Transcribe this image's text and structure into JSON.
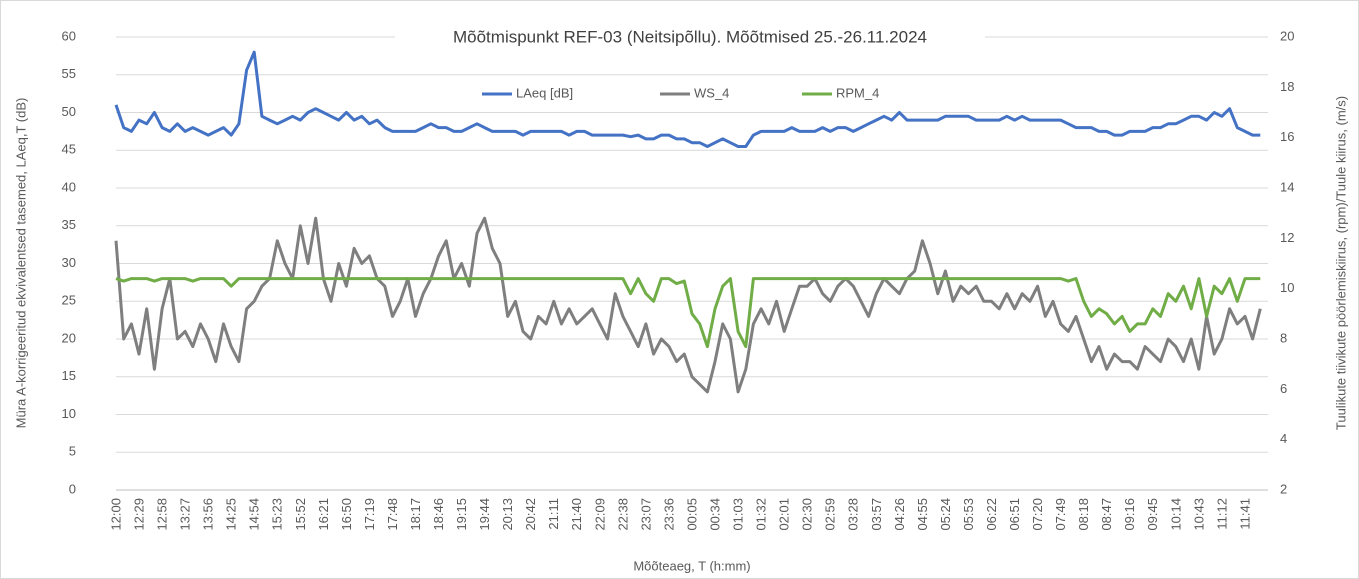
{
  "chart_data": {
    "type": "line",
    "title": "Mõõtmispunkt REF-03 (Neitsipõllu). Mõõtmised 25.-26.11.2024",
    "x_label": "Mõõteaeg, T (h:mm)",
    "y_label": "Müra A-korrigeeritud ekvivalentsed tasemed, LAeq,T (dB)",
    "y2_label": "Tuulikute tiivikute pöörlemiskiirus, (rpm)/Tuule kiirus, (m/s)",
    "ylim": [
      0,
      60
    ],
    "yticks": [
      0,
      5,
      10,
      15,
      20,
      25,
      30,
      35,
      40,
      45,
      50,
      55,
      60
    ],
    "y2lim": [
      2,
      20
    ],
    "y2ticks": [
      2,
      4,
      6,
      8,
      10,
      12,
      14,
      16,
      18,
      20
    ],
    "grid": true,
    "legend": "top",
    "categories": [
      "12:00",
      null,
      null,
      "12:29",
      null,
      null,
      "12:58",
      null,
      null,
      "13:27",
      null,
      null,
      "13:56",
      null,
      null,
      "14:25",
      null,
      null,
      "14:54",
      null,
      null,
      "15:23",
      null,
      null,
      "15:52",
      null,
      null,
      "16:21",
      null,
      null,
      "16:50",
      null,
      null,
      "17:19",
      null,
      null,
      "17:48",
      null,
      null,
      "18:17",
      null,
      null,
      "18:46",
      null,
      null,
      "19:15",
      null,
      null,
      "19:44",
      null,
      null,
      "20:13",
      null,
      null,
      "20:42",
      null,
      null,
      "21:11",
      null,
      null,
      "21:40",
      null,
      null,
      "22:09",
      null,
      null,
      "22:38",
      null,
      null,
      "23:07",
      null,
      null,
      "23:36",
      null,
      null,
      "00:05",
      null,
      null,
      "00:34",
      null,
      null,
      "01:03",
      null,
      null,
      "01:32",
      null,
      null,
      "02:01",
      null,
      null,
      "02:30",
      null,
      null,
      "02:59",
      null,
      null,
      "03:28",
      null,
      null,
      "03:57",
      null,
      null,
      "04:26",
      null,
      null,
      "04:55",
      null,
      null,
      "05:24",
      null,
      null,
      "05:53",
      null,
      null,
      "06:22",
      null,
      null,
      "06:51",
      null,
      null,
      "07:20",
      null,
      null,
      "07:49",
      null,
      null,
      "08:18",
      null,
      null,
      "08:47",
      null,
      null,
      "09:16",
      null,
      null,
      "09:45",
      null,
      null,
      "10:14",
      null,
      null,
      "10:43",
      null,
      null,
      "11:12",
      null,
      null,
      "11:41",
      null,
      null
    ],
    "series": [
      {
        "name": "LAeq [dB]",
        "color": "#4472c4",
        "values": [
          51,
          48,
          47.5,
          49,
          48.5,
          50,
          48,
          47.5,
          48.5,
          47.5,
          48,
          47.5,
          47,
          47.5,
          48,
          47,
          48.5,
          55.6,
          58,
          49.5,
          49,
          48.5,
          49,
          49.5,
          49,
          50,
          50.5,
          50,
          49.5,
          49,
          50,
          49,
          49.5,
          48.5,
          49,
          48,
          47.5,
          47.5,
          47.5,
          47.5,
          48,
          48.5,
          48,
          48,
          47.5,
          47.5,
          48,
          48.5,
          48,
          47.5,
          47.5,
          47.5,
          47.5,
          47,
          47.5,
          47.5,
          47.5,
          47.5,
          47.5,
          47,
          47.5,
          47.5,
          47,
          47,
          47,
          47,
          47,
          46.8,
          47,
          46.5,
          46.5,
          47,
          47,
          46.5,
          46.5,
          46,
          46,
          45.5,
          46,
          46.5,
          46,
          45.5,
          45.5,
          47,
          47.5,
          47.5,
          47.5,
          47.5,
          48,
          47.5,
          47.5,
          47.5,
          48,
          47.5,
          48,
          48,
          47.5,
          48,
          48.5,
          49,
          49.5,
          49,
          50,
          49,
          49,
          49,
          49,
          49,
          49.5,
          49.5,
          49.5,
          49.5,
          49,
          49,
          49,
          49,
          49.5,
          49,
          49.5,
          49,
          49,
          49,
          49,
          49,
          48.5,
          48,
          48,
          48,
          47.5,
          47.5,
          47,
          47,
          47.5,
          47.5,
          47.5,
          48,
          48,
          48.5,
          48.5,
          49,
          49.5,
          49.5,
          49,
          50,
          49.5,
          50.5,
          48,
          47.5,
          47,
          47
        ]
      },
      {
        "name": "WS_4",
        "color": "#7f7f7f",
        "axis": "y2",
        "values": [
          11.9,
          8,
          8.6,
          7.4,
          9.2,
          6.8,
          9.2,
          10.4,
          8,
          8.3,
          7.7,
          8.6,
          8,
          7.1,
          8.6,
          7.7,
          7.1,
          9.2,
          9.5,
          10.1,
          10.4,
          11.9,
          11,
          10.4,
          12.5,
          11,
          12.8,
          10.4,
          9.5,
          11,
          10.1,
          11.6,
          11,
          11.3,
          10.4,
          10.1,
          8.9,
          9.5,
          10.4,
          8.9,
          9.8,
          10.4,
          11.3,
          11.9,
          10.4,
          11,
          10.1,
          12.2,
          12.8,
          11.6,
          11,
          8.9,
          9.5,
          8.3,
          8,
          8.9,
          8.6,
          9.5,
          8.6,
          9.2,
          8.6,
          8.9,
          9.2,
          8.6,
          8,
          9.8,
          8.9,
          8.3,
          7.7,
          8.6,
          7.4,
          8,
          7.7,
          7.1,
          7.4,
          6.5,
          6.2,
          5.9,
          7.1,
          8.6,
          8,
          5.9,
          6.8,
          8.6,
          9.2,
          8.6,
          9.5,
          8.3,
          9.2,
          10.1,
          10.1,
          10.4,
          9.8,
          9.5,
          10.1,
          10.4,
          10.1,
          9.5,
          8.9,
          9.8,
          10.4,
          10.1,
          9.8,
          10.4,
          10.7,
          11.9,
          11,
          9.8,
          10.7,
          9.5,
          10.1,
          9.8,
          10.1,
          9.5,
          9.5,
          9.2,
          9.8,
          9.2,
          9.8,
          9.5,
          10.1,
          8.9,
          9.5,
          8.6,
          8.3,
          8.9,
          8,
          7.1,
          7.7,
          6.8,
          7.4,
          7.1,
          7.1,
          6.8,
          7.7,
          7.4,
          7.1,
          8,
          7.7,
          7.1,
          8,
          6.8,
          8.9,
          7.4,
          8,
          9.2,
          8.6,
          8.9,
          8,
          9.2
        ]
      },
      {
        "name": "RPM_4",
        "color": "#70ad47",
        "axis": "y2",
        "values": [
          10.4,
          10.3,
          10.4,
          10.4,
          10.4,
          10.3,
          10.4,
          10.4,
          10.4,
          10.4,
          10.3,
          10.4,
          10.4,
          10.4,
          10.4,
          10.1,
          10.4,
          10.4,
          10.4,
          10.4,
          10.4,
          10.4,
          10.4,
          10.4,
          10.4,
          10.4,
          10.4,
          10.4,
          10.4,
          10.4,
          10.4,
          10.4,
          10.4,
          10.4,
          10.4,
          10.4,
          10.4,
          10.4,
          10.4,
          10.4,
          10.4,
          10.4,
          10.4,
          10.4,
          10.4,
          10.4,
          10.4,
          10.4,
          10.4,
          10.4,
          10.4,
          10.4,
          10.4,
          10.4,
          10.4,
          10.4,
          10.4,
          10.4,
          10.4,
          10.4,
          10.4,
          10.4,
          10.4,
          10.4,
          10.4,
          10.4,
          10.4,
          9.8,
          10.4,
          9.8,
          9.5,
          10.4,
          10.4,
          10.2,
          10.3,
          9,
          8.6,
          7.7,
          9.2,
          10.1,
          10.4,
          8.3,
          7.7,
          10.4,
          10.4,
          10.4,
          10.4,
          10.4,
          10.4,
          10.4,
          10.4,
          10.4,
          10.4,
          10.4,
          10.4,
          10.4,
          10.4,
          10.4,
          10.4,
          10.4,
          10.4,
          10.4,
          10.4,
          10.4,
          10.4,
          10.4,
          10.4,
          10.4,
          10.4,
          10.4,
          10.4,
          10.4,
          10.4,
          10.4,
          10.4,
          10.4,
          10.4,
          10.4,
          10.4,
          10.4,
          10.4,
          10.4,
          10.4,
          10.4,
          10.3,
          10.4,
          9.5,
          8.9,
          9.2,
          9,
          8.6,
          8.9,
          8.3,
          8.6,
          8.6,
          9.2,
          8.9,
          9.8,
          9.5,
          10.1,
          9.2,
          10.4,
          8.9,
          10.1,
          9.8,
          10.4,
          9.5,
          10.4,
          10.4,
          10.4
        ]
      }
    ]
  }
}
